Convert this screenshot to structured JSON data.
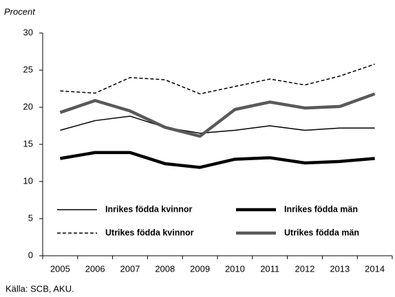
{
  "chart_data": {
    "type": "line",
    "ylabel": "Procent",
    "source": "Källa: SCB, AKU.",
    "categories": [
      "2005",
      "2006",
      "2007",
      "2008",
      "2009",
      "2010",
      "2011",
      "2012",
      "2013",
      "2014"
    ],
    "series": [
      {
        "name": "Inrikes födda kvinnor",
        "color": "#000000",
        "width": 1.5,
        "dashed": false,
        "values": [
          16.9,
          18.2,
          18.8,
          17.3,
          16.5,
          16.9,
          17.5,
          16.9,
          17.2,
          17.2
        ]
      },
      {
        "name": "Inrikes födda män",
        "color": "#000000",
        "width": 4.5,
        "dashed": false,
        "values": [
          13.1,
          13.9,
          13.9,
          12.4,
          11.9,
          13.0,
          13.2,
          12.5,
          12.7,
          13.1
        ]
      },
      {
        "name": "Utrikes födda kvinnor",
        "color": "#000000",
        "width": 1.5,
        "dashed": true,
        "values": [
          22.2,
          21.9,
          24.0,
          23.7,
          21.8,
          22.8,
          23.8,
          23.0,
          24.2,
          25.8
        ]
      },
      {
        "name": "Utrikes födda män",
        "color": "#595959",
        "width": 4.5,
        "dashed": false,
        "values": [
          19.3,
          20.9,
          19.5,
          17.3,
          16.1,
          19.7,
          20.7,
          19.9,
          20.1,
          21.8
        ]
      }
    ],
    "ylim": [
      0,
      30
    ],
    "yticks": [
      0,
      5,
      10,
      15,
      20,
      25,
      30
    ],
    "grid": false
  }
}
